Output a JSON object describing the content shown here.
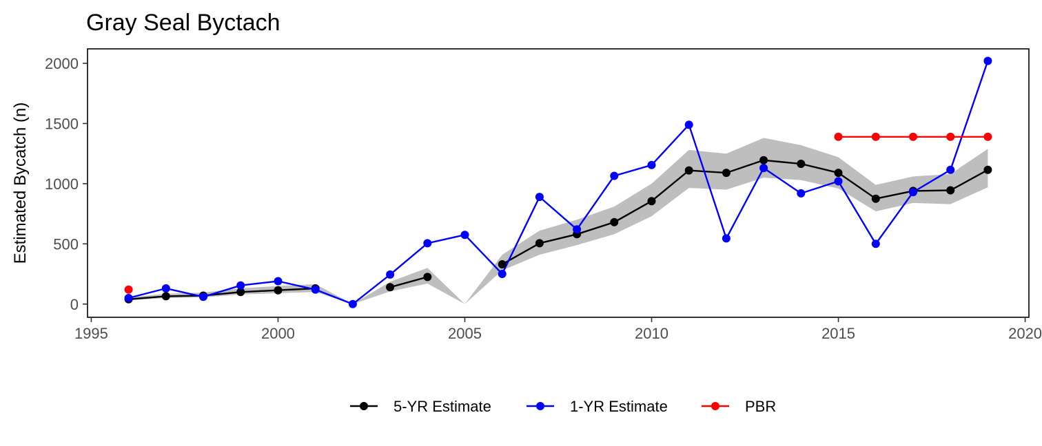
{
  "chart_data": {
    "type": "line",
    "title": "Gray Seal Byctach",
    "xlabel": "",
    "ylabel": "Estimated Bycatch (n)",
    "xlim": [
      1994.9,
      2020.1
    ],
    "ylim": [
      -110,
      2120
    ],
    "x_ticks": [
      1995,
      2000,
      2005,
      2010,
      2015,
      2020
    ],
    "y_ticks": [
      0,
      500,
      1000,
      1500,
      2000
    ],
    "grid": false,
    "legend_position": "bottom",
    "ribbon": {
      "series": "5-YR Estimate",
      "color": "#bebebe",
      "segments": [
        {
          "x": [
            1996,
            1997,
            1998,
            1999,
            2000,
            2001,
            2002
          ],
          "lower": [
            30,
            50,
            55,
            80,
            90,
            100,
            0
          ],
          "upper": [
            55,
            85,
            95,
            130,
            150,
            165,
            0
          ]
        },
        {
          "x": [
            2002,
            2003,
            2004,
            2005,
            2006,
            2007,
            2008,
            2009,
            2010,
            2011,
            2012,
            2013,
            2014,
            2015,
            2016,
            2017,
            2018,
            2019
          ],
          "lower": [
            0,
            105,
            170,
            0,
            280,
            410,
            490,
            580,
            730,
            965,
            950,
            1050,
            1030,
            960,
            770,
            840,
            830,
            970
          ],
          "upper": [
            0,
            185,
            300,
            0,
            410,
            610,
            700,
            810,
            1000,
            1280,
            1250,
            1380,
            1320,
            1220,
            990,
            1060,
            1080,
            1290
          ]
        }
      ]
    },
    "series": [
      {
        "name": "5-YR Estimate",
        "color": "#000000",
        "x": [
          1996,
          1997,
          1998,
          1999,
          2000,
          2001,
          2003,
          2004,
          2006,
          2007,
          2008,
          2009,
          2010,
          2011,
          2012,
          2013,
          2014,
          2015,
          2016,
          2017,
          2018,
          2019
        ],
        "y": [
          40,
          65,
          70,
          100,
          115,
          130,
          140,
          225,
          330,
          505,
          580,
          680,
          855,
          1110,
          1090,
          1195,
          1165,
          1090,
          875,
          940,
          945,
          1115
        ],
        "segments": [
          [
            0,
            5
          ],
          [
            6,
            7
          ],
          [
            8,
            21
          ]
        ]
      },
      {
        "name": "1-YR Estimate",
        "color": "#0000ff",
        "x": [
          1996,
          1997,
          1998,
          1999,
          2000,
          2001,
          2002,
          2003,
          2004,
          2005,
          2006,
          2007,
          2008,
          2009,
          2010,
          2011,
          2012,
          2013,
          2014,
          2015,
          2016,
          2017,
          2018,
          2019
        ],
        "y": [
          50,
          130,
          60,
          155,
          190,
          120,
          0,
          245,
          505,
          575,
          250,
          890,
          620,
          1065,
          1155,
          1490,
          545,
          1130,
          920,
          1020,
          500,
          930,
          1115,
          2020
        ],
        "segments": [
          [
            0,
            23
          ]
        ]
      },
      {
        "name": "PBR",
        "color": "#ff0000",
        "x": [
          1996,
          2015,
          2016,
          2017,
          2018,
          2019
        ],
        "y": [
          120,
          1389,
          1389,
          1389,
          1389,
          1389
        ],
        "segments": [
          [
            0,
            0
          ],
          [
            1,
            5
          ]
        ]
      }
    ],
    "legend": [
      {
        "label": "5-YR Estimate",
        "color": "#000000"
      },
      {
        "label": "1-YR Estimate",
        "color": "#0000ff"
      },
      {
        "label": "PBR",
        "color": "#ff0000"
      }
    ]
  }
}
